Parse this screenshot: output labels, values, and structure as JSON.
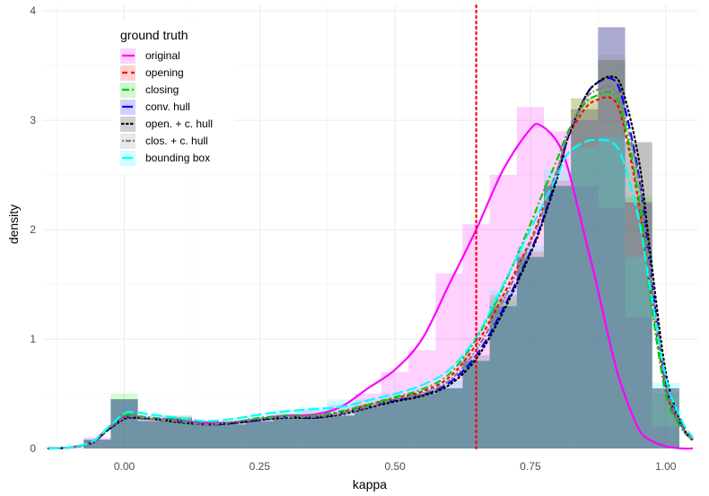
{
  "chart_data": {
    "type": "area",
    "xlabel": "kappa",
    "ylabel": "density",
    "xlim": [
      -0.15,
      1.06
    ],
    "ylim": [
      0,
      4.05
    ],
    "x_ticks": [
      0.0,
      0.25,
      0.5,
      0.75,
      1.0
    ],
    "x_tick_labels": [
      "0.00",
      "0.25",
      "0.50",
      "0.75",
      "1.00"
    ],
    "y_ticks": [
      0,
      1,
      2,
      3,
      4
    ],
    "y_tick_labels": [
      "0",
      "1",
      "2",
      "3",
      "4"
    ],
    "grid": true,
    "vline": {
      "x": 0.65,
      "color": "#ff0000",
      "style": "dotted"
    },
    "legend": {
      "title": "ground truth",
      "position": "top-left",
      "entries": [
        {
          "label": "original",
          "color": "#ff00ff",
          "dash": "solid"
        },
        {
          "label": "opening",
          "color": "#ff0000",
          "dash": "dashed"
        },
        {
          "label": "closing",
          "color": "#00cc00",
          "dash": "dotdash"
        },
        {
          "label": "conv. hull",
          "color": "#0000ff",
          "dash": "longdash"
        },
        {
          "label": "open. + c. hull",
          "color": "#000000",
          "dash": "dotted"
        },
        {
          "label": "clos. + c. hull",
          "color": "#808080",
          "dash": "twodash"
        },
        {
          "label": "bounding box",
          "color": "#00ffff",
          "dash": "longdash"
        }
      ]
    },
    "histogram": {
      "bin_width": 0.05,
      "bin_starts": [
        -0.075,
        -0.025,
        0.025,
        0.075,
        0.125,
        0.175,
        0.225,
        0.275,
        0.325,
        0.375,
        0.425,
        0.475,
        0.525,
        0.575,
        0.625,
        0.675,
        0.725,
        0.775,
        0.825,
        0.875,
        0.925,
        0.975
      ],
      "series": [
        {
          "name": "original",
          "color": "#ff00ff",
          "values": [
            0.1,
            0.45,
            0.3,
            0.28,
            0.25,
            0.25,
            0.27,
            0.32,
            0.35,
            0.4,
            0.5,
            0.7,
            0.9,
            1.6,
            2.05,
            2.5,
            3.12,
            2.9,
            2.4,
            2.2,
            1.2,
            0.2
          ]
        },
        {
          "name": "opening",
          "color": "#ff0000",
          "values": [
            0.08,
            0.45,
            0.27,
            0.28,
            0.25,
            0.22,
            0.25,
            0.28,
            0.3,
            0.3,
            0.4,
            0.45,
            0.5,
            0.55,
            0.85,
            1.4,
            1.8,
            2.45,
            3.2,
            3.55,
            2.25,
            0.55
          ]
        },
        {
          "name": "closing",
          "color": "#00ff00",
          "values": [
            0.08,
            0.5,
            0.25,
            0.3,
            0.25,
            0.22,
            0.25,
            0.28,
            0.3,
            0.3,
            0.38,
            0.45,
            0.5,
            0.55,
            0.8,
            1.35,
            1.75,
            2.4,
            3.2,
            3.55,
            2.3,
            0.5
          ]
        },
        {
          "name": "conv. hull",
          "color": "#0000ff",
          "values": [
            0.08,
            0.45,
            0.25,
            0.28,
            0.25,
            0.22,
            0.25,
            0.28,
            0.3,
            0.3,
            0.38,
            0.45,
            0.5,
            0.55,
            0.8,
            1.3,
            1.75,
            2.4,
            3.0,
            3.85,
            2.25,
            0.55
          ]
        },
        {
          "name": "open. + c. hull",
          "color": "#000000",
          "values": [
            0.08,
            0.45,
            0.25,
            0.28,
            0.25,
            0.22,
            0.25,
            0.28,
            0.3,
            0.3,
            0.38,
            0.45,
            0.5,
            0.55,
            0.8,
            1.3,
            1.75,
            2.4,
            3.1,
            3.85,
            2.8,
            0.55
          ]
        },
        {
          "name": "clos. + c. hull",
          "color": "#808080",
          "values": [
            0.08,
            0.45,
            0.25,
            0.3,
            0.25,
            0.22,
            0.25,
            0.28,
            0.3,
            0.3,
            0.38,
            0.45,
            0.5,
            0.55,
            0.8,
            1.3,
            1.75,
            2.4,
            3.1,
            3.6,
            2.8,
            0.55
          ]
        },
        {
          "name": "bounding box",
          "color": "#00ffff",
          "values": [
            0.08,
            0.45,
            0.3,
            0.28,
            0.25,
            0.25,
            0.3,
            0.35,
            0.38,
            0.45,
            0.45,
            0.5,
            0.55,
            0.62,
            0.85,
            1.45,
            1.85,
            2.55,
            2.75,
            2.85,
            1.75,
            0.6
          ]
        }
      ]
    },
    "density_x": [
      -0.14,
      -0.1,
      -0.06,
      -0.03,
      0.0,
      0.02,
      0.05,
      0.1,
      0.15,
      0.2,
      0.25,
      0.3,
      0.35,
      0.4,
      0.45,
      0.5,
      0.55,
      0.6,
      0.65,
      0.7,
      0.75,
      0.77,
      0.8,
      0.82,
      0.85,
      0.87,
      0.9,
      0.92,
      0.95,
      0.97,
      1.0,
      1.03,
      1.05
    ],
    "series": [
      {
        "name": "original",
        "color": "#ff00ff",
        "dash": "solid",
        "values": [
          0.0,
          0.01,
          0.06,
          0.18,
          0.29,
          0.29,
          0.27,
          0.26,
          0.23,
          0.24,
          0.27,
          0.3,
          0.31,
          0.38,
          0.55,
          0.72,
          1.0,
          1.5,
          2.0,
          2.55,
          2.92,
          2.95,
          2.8,
          2.55,
          1.95,
          1.55,
          0.9,
          0.55,
          0.18,
          0.08,
          0.02,
          0.0,
          0.0
        ]
      },
      {
        "name": "opening",
        "color": "#ff0000",
        "dash": "4,3",
        "values": [
          0.0,
          0.01,
          0.06,
          0.18,
          0.28,
          0.29,
          0.27,
          0.25,
          0.22,
          0.24,
          0.27,
          0.29,
          0.29,
          0.33,
          0.4,
          0.46,
          0.52,
          0.65,
          0.95,
          1.4,
          1.9,
          2.15,
          2.55,
          2.85,
          3.1,
          3.18,
          3.2,
          3.0,
          2.25,
          1.5,
          0.55,
          0.2,
          0.1
        ]
      },
      {
        "name": "closing",
        "color": "#00cc00",
        "dash": "8,3,2,3",
        "values": [
          0.0,
          0.01,
          0.06,
          0.19,
          0.3,
          0.3,
          0.28,
          0.26,
          0.22,
          0.24,
          0.28,
          0.3,
          0.3,
          0.34,
          0.4,
          0.47,
          0.54,
          0.68,
          1.0,
          1.48,
          2.05,
          2.3,
          2.65,
          2.9,
          3.15,
          3.22,
          3.25,
          3.05,
          2.3,
          1.45,
          0.5,
          0.18,
          0.08
        ]
      },
      {
        "name": "conv. hull",
        "color": "#0000ff",
        "dash": "10,4",
        "values": [
          0.0,
          0.01,
          0.05,
          0.17,
          0.28,
          0.28,
          0.27,
          0.25,
          0.22,
          0.23,
          0.26,
          0.29,
          0.28,
          0.32,
          0.38,
          0.44,
          0.49,
          0.6,
          0.85,
          1.28,
          1.8,
          2.05,
          2.5,
          2.85,
          3.2,
          3.33,
          3.38,
          3.2,
          2.5,
          1.7,
          0.6,
          0.2,
          0.08
        ]
      },
      {
        "name": "open. + c. hull",
        "color": "#000000",
        "dash": "1.5,3.5",
        "values": [
          0.0,
          0.01,
          0.05,
          0.17,
          0.27,
          0.28,
          0.27,
          0.24,
          0.22,
          0.23,
          0.26,
          0.28,
          0.28,
          0.31,
          0.37,
          0.43,
          0.48,
          0.58,
          0.82,
          1.25,
          1.78,
          2.03,
          2.48,
          2.85,
          3.2,
          3.33,
          3.4,
          3.28,
          2.65,
          1.85,
          0.7,
          0.22,
          0.07
        ]
      },
      {
        "name": "clos. + c. hull",
        "color": "#808080",
        "dash": "2,2,6,2",
        "values": [
          0.0,
          0.01,
          0.05,
          0.18,
          0.28,
          0.29,
          0.27,
          0.25,
          0.22,
          0.24,
          0.27,
          0.29,
          0.29,
          0.32,
          0.38,
          0.45,
          0.5,
          0.62,
          0.9,
          1.35,
          1.88,
          2.12,
          2.55,
          2.88,
          3.18,
          3.27,
          3.3,
          3.12,
          2.45,
          1.65,
          0.6,
          0.2,
          0.08
        ]
      },
      {
        "name": "bounding box",
        "color": "#00ffff",
        "dash": "12,4",
        "values": [
          0.0,
          0.01,
          0.06,
          0.19,
          0.32,
          0.33,
          0.31,
          0.28,
          0.25,
          0.27,
          0.31,
          0.34,
          0.36,
          0.38,
          0.44,
          0.5,
          0.58,
          0.72,
          1.02,
          1.5,
          2.0,
          2.2,
          2.5,
          2.7,
          2.8,
          2.82,
          2.8,
          2.65,
          2.1,
          1.5,
          0.65,
          0.25,
          0.1
        ]
      }
    ]
  }
}
